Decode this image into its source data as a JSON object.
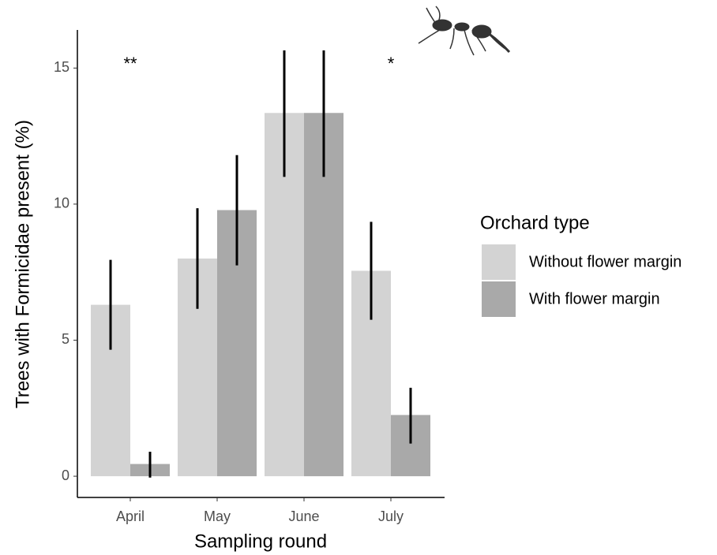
{
  "chart_data": {
    "type": "bar",
    "x_label": "Sampling round",
    "y_label": "Trees with Formicidae present (%)",
    "legend_title": "Orchard type",
    "legend_position": "right",
    "categories": [
      "April",
      "May",
      "June",
      "July"
    ],
    "series": [
      {
        "name": "Without flower margin",
        "color": "#d3d3d3",
        "values": [
          6.3,
          8.0,
          13.35,
          7.55
        ],
        "error_low": [
          4.65,
          6.15,
          11.0,
          5.75
        ],
        "error_high": [
          7.95,
          9.85,
          15.65,
          9.35
        ]
      },
      {
        "name": "With flower margin",
        "color": "#a9a9a9",
        "values": [
          0.45,
          9.78,
          13.35,
          2.25
        ],
        "error_low": [
          -0.05,
          7.75,
          11.0,
          1.2
        ],
        "error_high": [
          0.9,
          11.8,
          15.65,
          3.25
        ]
      }
    ],
    "annotations": [
      {
        "text": "**",
        "category": 0
      },
      {
        "text": "*",
        "category": 3
      }
    ],
    "ylim": [
      -0.78,
      16.4
    ],
    "yticks": [
      0,
      5,
      10,
      15
    ],
    "grid": false
  }
}
